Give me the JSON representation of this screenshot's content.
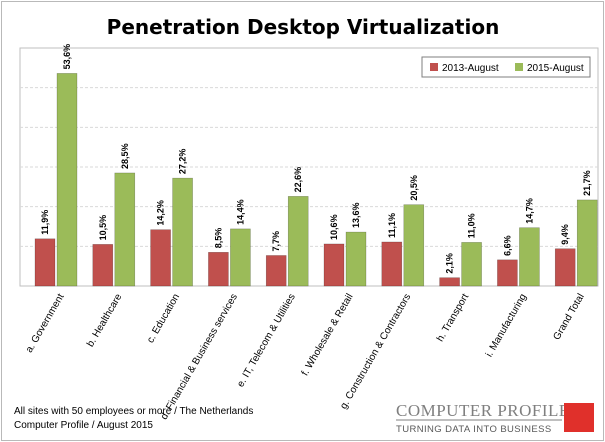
{
  "chart_data": {
    "type": "bar",
    "title": "Penetration Desktop Virtualization",
    "categories": [
      "a. Government",
      "b. Healthcare",
      "c. Education",
      "d. Financial & Business services",
      "e. IT, Telecom & Utilities",
      "f. Wholesale & Retail",
      "g. Construction & Contractors",
      "h. Transport",
      "i. Manufacturing",
      "Grand Total"
    ],
    "series": [
      {
        "name": "2013-August",
        "color": "#c0504d",
        "values": [
          11.9,
          10.5,
          14.2,
          8.5,
          7.7,
          10.6,
          11.1,
          2.1,
          6.6,
          9.4
        ],
        "labels": [
          "11,9%",
          "10,5%",
          "14,2%",
          "8,5%",
          "7,7%",
          "10,6%",
          "11,1%",
          "2,1%",
          "6,6%",
          "9,4%"
        ]
      },
      {
        "name": "2015-August",
        "color": "#9bbb59",
        "values": [
          53.6,
          28.5,
          27.2,
          14.4,
          22.6,
          13.6,
          20.5,
          11.0,
          14.7,
          21.7
        ],
        "labels": [
          "53,6%",
          "28,5%",
          "27,2%",
          "14,4%",
          "22,6%",
          "13,6%",
          "20,5%",
          "11,0%",
          "14,7%",
          "21,7%"
        ]
      }
    ],
    "ylim": [
      0,
      60
    ],
    "grid": true,
    "legend_position": "top-right",
    "xlabel": "",
    "ylabel": ""
  },
  "footer": {
    "line1": "All sites with 50 employees or more / The Netherlands",
    "line2": "Computer Profile / August 2015"
  },
  "logo": {
    "name": "COMPUTER PROFILE",
    "tagline": "TURNING DATA INTO BUSINESS",
    "accent_color": "#e0302b"
  }
}
